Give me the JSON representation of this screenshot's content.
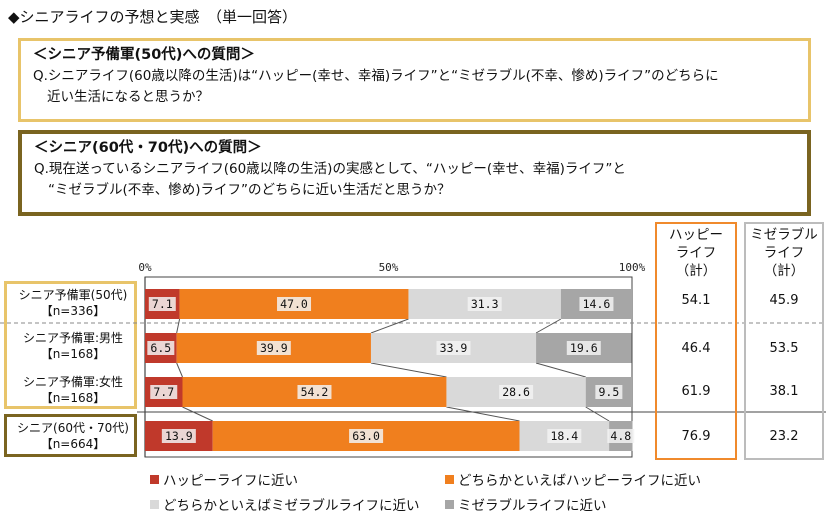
{
  "title": "◆シニアライフの予想と実感　（単一回答）",
  "question1": {
    "heading": "＜シニア予備軍(50代)への質問＞",
    "line1": "Q.シニアライフ(60歳以降の生活)は“ハッピー(幸せ、幸福)ライフ”と“ミゼラブル(不幸、惨め)ライフ”のどちらに",
    "line2": "近い生活になると思うか？"
  },
  "question2": {
    "heading": "＜シニア(60代・70代)への質問＞",
    "line1": "Q.現在送っているシニアライフ(60歳以降の生活)の実感として、“ハッピー(幸せ、幸福)ライフ”と",
    "line2": "“ミゼラブル(不幸、惨め)ライフ”のどちらに近い生活だと思うか？"
  },
  "rows": [
    {
      "label1": "シニア予備軍(50代)",
      "label2": "【n=336】"
    },
    {
      "label1": "シニア予備軍:男性",
      "label2": "【n=168】"
    },
    {
      "label1": "シニア予備軍:女性",
      "label2": "【n=168】"
    },
    {
      "label1": "シニア(60代・70代)",
      "label2": "【n=664】"
    }
  ],
  "columns": {
    "happy": {
      "line1": "ハッピー",
      "line2": "ライフ",
      "line3": "（計）",
      "values": [
        "54.1",
        "46.4",
        "61.9",
        "76.9"
      ]
    },
    "miserable": {
      "line1": "ミゼラブル",
      "line2": "ライフ",
      "line3": "（計）",
      "values": [
        "45.9",
        "53.5",
        "38.1",
        "23.2"
      ]
    }
  },
  "chart_data": {
    "type": "bar",
    "orientation": "horizontal-stacked-100",
    "categories": [
      "シニア予備軍(50代)【n=336】",
      "シニア予備軍:男性【n=168】",
      "シニア予備軍:女性【n=168】",
      "シニア(60代・70代)【n=664】"
    ],
    "ticks": [
      "0%",
      "50%",
      "100%"
    ],
    "xlim": [
      0,
      100
    ],
    "series": [
      {
        "name": "ハッピーライフに近い",
        "color": "#c0392b",
        "values": [
          7.1,
          6.5,
          7.7,
          13.9
        ]
      },
      {
        "name": "どちらかといえばハッピーライフに近い",
        "color": "#f07f1e",
        "values": [
          47.0,
          39.9,
          54.2,
          63.0
        ]
      },
      {
        "name": "どちらかといえばミゼラブルライフに近い",
        "color": "#d9d9d9",
        "values": [
          31.3,
          33.9,
          28.6,
          18.4
        ]
      },
      {
        "name": "ミゼラブルライフに近い",
        "color": "#a6a6a6",
        "values": [
          14.6,
          19.6,
          9.5,
          4.8
        ]
      }
    ]
  }
}
